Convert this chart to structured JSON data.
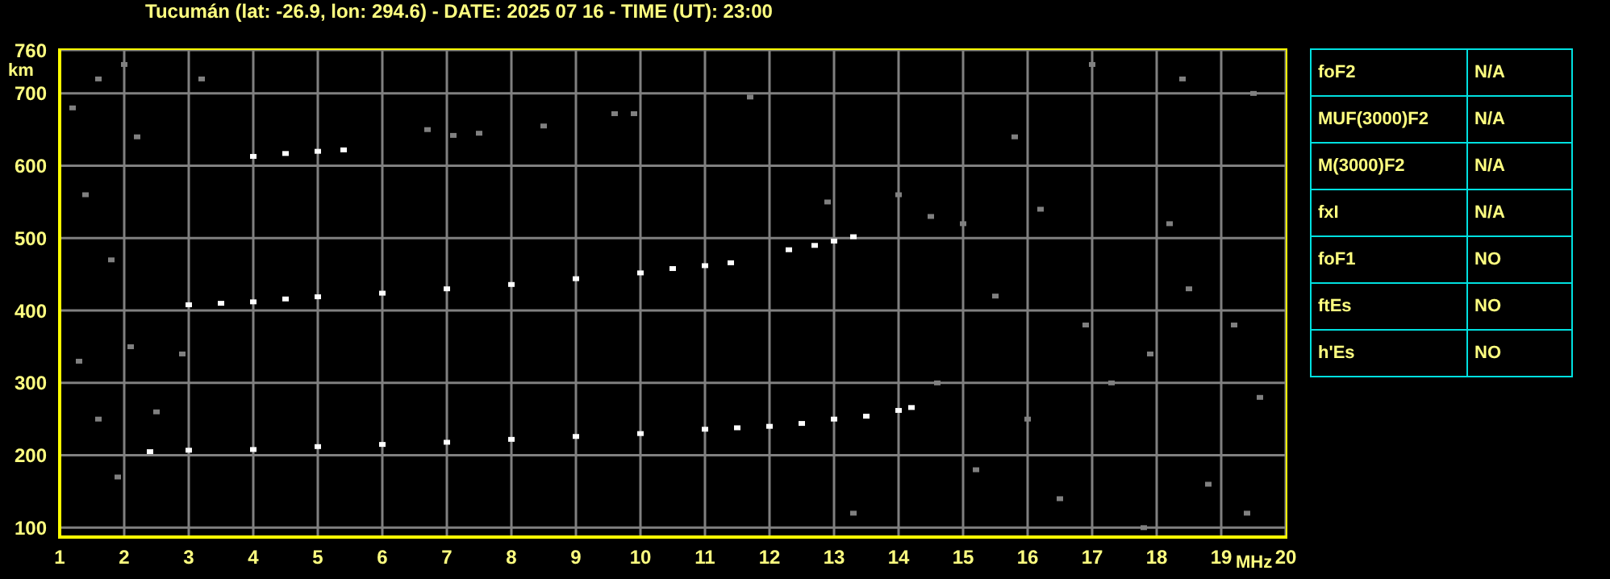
{
  "chart_data": [
    {
      "type": "scatter",
      "title": "Tucumán (lat: -26.9, lon: 294.6) - DATE: 2025 07 16 - TIME (UT): 23:00",
      "xlabel": "MHz",
      "ylabel": "km",
      "xlim": [
        1,
        20
      ],
      "xticks": [
        1,
        2,
        3,
        4,
        5,
        6,
        7,
        8,
        9,
        10,
        11,
        12,
        13,
        14,
        15,
        16,
        17,
        18,
        19,
        20
      ],
      "ylim": [
        87,
        760
      ],
      "yticks": [
        100,
        200,
        300,
        400,
        500,
        600,
        700,
        760
      ],
      "grid": true,
      "marker": "square",
      "legend": false,
      "series": [
        {
          "color": "#ffffff",
          "x": [
            2.4,
            3,
            4,
            5,
            6,
            7,
            8,
            9,
            10,
            11,
            11.5,
            12,
            12.5,
            13,
            13.5,
            14,
            14.2
          ],
          "values": [
            205,
            207,
            208,
            212,
            215,
            218,
            222,
            226,
            230,
            236,
            238,
            240,
            244,
            250,
            254,
            262,
            266
          ]
        },
        {
          "color": "#ffffff",
          "x": [
            3,
            3.5,
            4,
            4.5,
            5,
            6,
            7,
            8,
            9,
            10,
            10.5,
            11,
            11.4,
            12.3,
            12.7,
            13,
            13.3
          ],
          "values": [
            408,
            410,
            412,
            416,
            419,
            424,
            430,
            436,
            444,
            452,
            458,
            462,
            466,
            484,
            490,
            496,
            502
          ]
        },
        {
          "color": "#ffffff",
          "x": [
            4,
            4.5,
            5,
            5.4
          ],
          "values": [
            613,
            617,
            620,
            622
          ]
        },
        {
          "color": "#808080",
          "x": [
            6.7,
            7.1,
            7.5,
            8.5,
            9.6,
            9.9,
            11.7,
            1.2,
            1.6,
            2,
            2.2,
            1.4,
            1.8,
            2.1,
            1.3,
            1.6,
            1.9,
            2.5,
            2.9,
            3.2,
            12.9,
            14,
            14.5,
            15,
            15.5,
            16.2,
            16.9,
            17.3,
            17.9,
            18.5,
            19.2,
            19.6,
            15.2,
            16.5,
            17.8,
            18.8,
            19.4,
            13.3,
            14.6,
            16,
            18.2,
            19.5,
            18.4,
            17,
            15.8
          ],
          "values": [
            650,
            642,
            645,
            655,
            672,
            672,
            695,
            680,
            720,
            740,
            640,
            560,
            470,
            350,
            330,
            250,
            170,
            260,
            340,
            720,
            550,
            560,
            530,
            520,
            420,
            540,
            380,
            300,
            340,
            430,
            380,
            280,
            180,
            140,
            100,
            160,
            120,
            120,
            300,
            250,
            520,
            700,
            720,
            740,
            640
          ]
        }
      ]
    },
    {
      "type": "other",
      "annotations": [
        "foF2",
        "N/A",
        "MUF(3000)F2",
        "N/A",
        "M(3000)F2",
        "N/A",
        "fxI",
        "N/A",
        "foF1",
        "NO",
        "ftEs",
        "NO",
        "h'Es",
        "NO"
      ]
    }
  ]
}
